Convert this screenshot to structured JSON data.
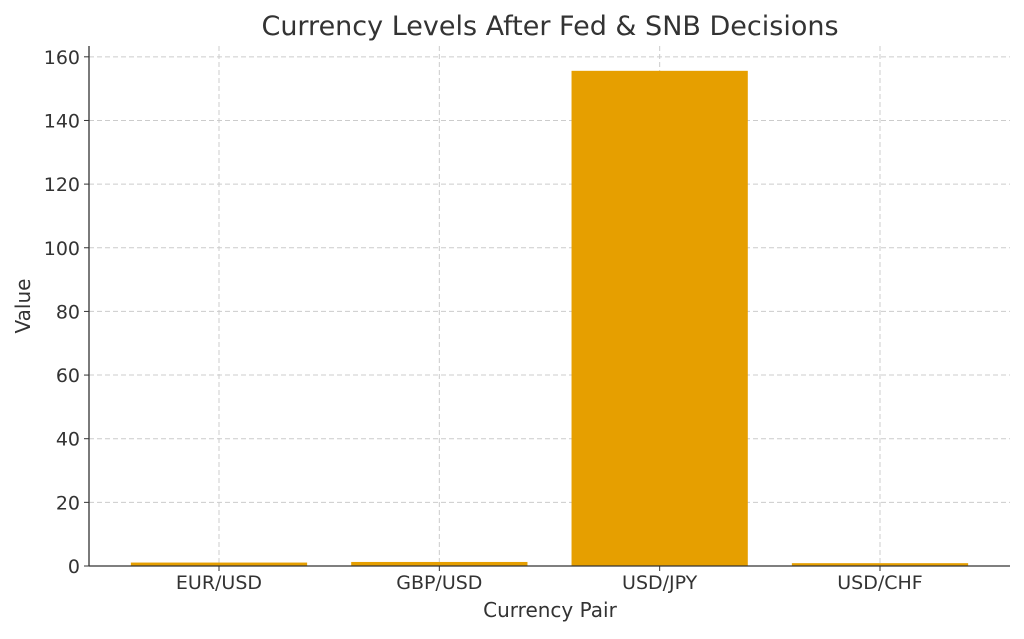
{
  "chart_data": {
    "type": "bar",
    "title": "Currency Levels After Fed & SNB Decisions",
    "xlabel": "Currency Pair",
    "ylabel": "Value",
    "categories": [
      "EUR/USD",
      "GBP/USD",
      "USD/JPY",
      "USD/CHF"
    ],
    "values": [
      1.08,
      1.27,
      155.6,
      0.89
    ],
    "ylim": [
      0,
      163.4
    ],
    "yticks": [
      0,
      20,
      40,
      60,
      80,
      100,
      120,
      140,
      160
    ],
    "grid": true,
    "bar_color": "#E69F00"
  }
}
